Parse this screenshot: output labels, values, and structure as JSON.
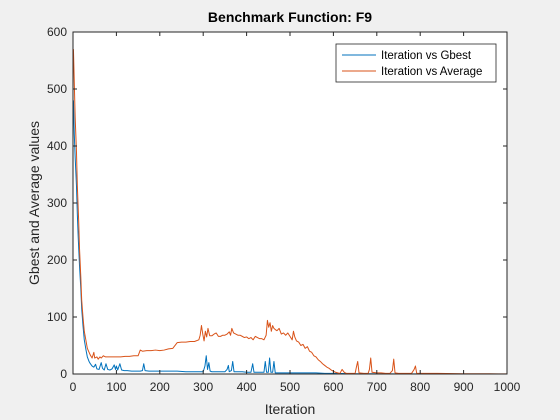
{
  "chart_data": {
    "type": "line",
    "title": "Benchmark Function: F9",
    "xlabel": "Iteration",
    "ylabel": "Gbest and Average values",
    "xlim": [
      0,
      1000
    ],
    "ylim": [
      0,
      600
    ],
    "xticks": [
      0,
      100,
      200,
      300,
      400,
      500,
      600,
      700,
      800,
      900,
      1000
    ],
    "yticks": [
      0,
      100,
      200,
      300,
      400,
      500,
      600
    ],
    "grid": false,
    "legend_placement": "top-right",
    "series": [
      {
        "name": "Iteration vs Gbest",
        "color": "#0072BD",
        "points": [
          [
            1,
            480
          ],
          [
            3,
            420
          ],
          [
            5,
            380
          ],
          [
            8,
            330
          ],
          [
            10,
            280
          ],
          [
            12,
            240
          ],
          [
            15,
            190
          ],
          [
            18,
            150
          ],
          [
            20,
            115
          ],
          [
            23,
            85
          ],
          [
            26,
            60
          ],
          [
            30,
            42
          ],
          [
            33,
            30
          ],
          [
            37,
            22
          ],
          [
            40,
            18
          ],
          [
            44,
            14
          ],
          [
            48,
            12
          ],
          [
            52,
            17
          ],
          [
            55,
            9
          ],
          [
            60,
            8
          ],
          [
            65,
            20
          ],
          [
            68,
            10
          ],
          [
            72,
            7
          ],
          [
            76,
            18
          ],
          [
            80,
            8
          ],
          [
            85,
            7
          ],
          [
            90,
            9
          ],
          [
            95,
            16
          ],
          [
            98,
            8
          ],
          [
            100,
            14
          ],
          [
            103,
            7
          ],
          [
            108,
            18
          ],
          [
            112,
            7
          ],
          [
            118,
            6
          ],
          [
            125,
            6
          ],
          [
            135,
            5
          ],
          [
            145,
            5
          ],
          [
            155,
            5
          ],
          [
            160,
            6
          ],
          [
            163,
            18
          ],
          [
            166,
            6
          ],
          [
            175,
            5
          ],
          [
            190,
            5
          ],
          [
            200,
            5
          ],
          [
            220,
            5
          ],
          [
            240,
            5
          ],
          [
            260,
            4
          ],
          [
            280,
            4
          ],
          [
            295,
            4
          ],
          [
            300,
            4
          ],
          [
            304,
            14
          ],
          [
            307,
            32
          ],
          [
            310,
            8
          ],
          [
            313,
            20
          ],
          [
            316,
            5
          ],
          [
            320,
            4
          ],
          [
            330,
            4
          ],
          [
            340,
            4
          ],
          [
            350,
            4
          ],
          [
            355,
            8
          ],
          [
            358,
            15
          ],
          [
            360,
            4
          ],
          [
            365,
            6
          ],
          [
            368,
            22
          ],
          [
            371,
            4
          ],
          [
            380,
            4
          ],
          [
            390,
            4
          ],
          [
            400,
            3
          ],
          [
            410,
            3
          ],
          [
            414,
            18
          ],
          [
            417,
            3
          ],
          [
            425,
            3
          ],
          [
            435,
            3
          ],
          [
            440,
            3
          ],
          [
            443,
            22
          ],
          [
            446,
            3
          ],
          [
            450,
            3
          ],
          [
            453,
            28
          ],
          [
            456,
            3
          ],
          [
            460,
            3
          ],
          [
            463,
            22
          ],
          [
            466,
            2
          ],
          [
            480,
            2
          ],
          [
            500,
            2
          ],
          [
            520,
            2
          ],
          [
            540,
            2
          ],
          [
            560,
            2
          ],
          [
            580,
            1
          ],
          [
            600,
            1
          ],
          [
            620,
            0.8
          ],
          [
            650,
            0.5
          ],
          [
            700,
            0.4
          ],
          [
            750,
            0.3
          ],
          [
            800,
            0.2
          ],
          [
            850,
            0.2
          ],
          [
            900,
            0.1
          ],
          [
            950,
            0.1
          ],
          [
            1000,
            0.1
          ]
        ]
      },
      {
        "name": "Iteration vs Average",
        "color": "#D95319",
        "points": [
          [
            1,
            570
          ],
          [
            3,
            510
          ],
          [
            5,
            450
          ],
          [
            8,
            390
          ],
          [
            10,
            330
          ],
          [
            13,
            270
          ],
          [
            15,
            220
          ],
          [
            18,
            170
          ],
          [
            20,
            130
          ],
          [
            23,
            100
          ],
          [
            26,
            75
          ],
          [
            30,
            58
          ],
          [
            33,
            45
          ],
          [
            37,
            38
          ],
          [
            40,
            33
          ],
          [
            44,
            28
          ],
          [
            48,
            38
          ],
          [
            50,
            28
          ],
          [
            55,
            30
          ],
          [
            58,
            26
          ],
          [
            62,
            30
          ],
          [
            65,
            28
          ],
          [
            70,
            32
          ],
          [
            75,
            30
          ],
          [
            80,
            30
          ],
          [
            90,
            30
          ],
          [
            100,
            30
          ],
          [
            110,
            30
          ],
          [
            120,
            31
          ],
          [
            130,
            31
          ],
          [
            140,
            32
          ],
          [
            150,
            32
          ],
          [
            155,
            42
          ],
          [
            160,
            40
          ],
          [
            170,
            41
          ],
          [
            180,
            41
          ],
          [
            190,
            42
          ],
          [
            200,
            41
          ],
          [
            210,
            42
          ],
          [
            220,
            44
          ],
          [
            230,
            45
          ],
          [
            240,
            55
          ],
          [
            250,
            56
          ],
          [
            260,
            56
          ],
          [
            270,
            57
          ],
          [
            280,
            57
          ],
          [
            290,
            60
          ],
          [
            293,
            68
          ],
          [
            296,
            85
          ],
          [
            299,
            70
          ],
          [
            302,
            58
          ],
          [
            305,
            75
          ],
          [
            308,
            65
          ],
          [
            311,
            80
          ],
          [
            315,
            67
          ],
          [
            320,
            67
          ],
          [
            325,
            70
          ],
          [
            330,
            72
          ],
          [
            335,
            66
          ],
          [
            340,
            66
          ],
          [
            345,
            68
          ],
          [
            350,
            68
          ],
          [
            355,
            70
          ],
          [
            360,
            74
          ],
          [
            363,
            68
          ],
          [
            366,
            80
          ],
          [
            370,
            72
          ],
          [
            375,
            70
          ],
          [
            380,
            68
          ],
          [
            385,
            68
          ],
          [
            390,
            66
          ],
          [
            395,
            64
          ],
          [
            400,
            65
          ],
          [
            405,
            62
          ],
          [
            410,
            64
          ],
          [
            415,
            60
          ],
          [
            420,
            66
          ],
          [
            425,
            64
          ],
          [
            430,
            62
          ],
          [
            435,
            62
          ],
          [
            440,
            60
          ],
          [
            445,
            68
          ],
          [
            448,
            94
          ],
          [
            451,
            82
          ],
          [
            454,
            90
          ],
          [
            457,
            75
          ],
          [
            460,
            85
          ],
          [
            463,
            80
          ],
          [
            466,
            78
          ],
          [
            470,
            76
          ],
          [
            475,
            80
          ],
          [
            480,
            70
          ],
          [
            485,
            72
          ],
          [
            490,
            68
          ],
          [
            495,
            72
          ],
          [
            500,
            66
          ],
          [
            505,
            60
          ],
          [
            508,
            75
          ],
          [
            511,
            65
          ],
          [
            515,
            58
          ],
          [
            520,
            56
          ],
          [
            525,
            50
          ],
          [
            530,
            52
          ],
          [
            535,
            45
          ],
          [
            540,
            48
          ],
          [
            545,
            40
          ],
          [
            550,
            38
          ],
          [
            555,
            32
          ],
          [
            560,
            30
          ],
          [
            565,
            25
          ],
          [
            570,
            22
          ],
          [
            575,
            18
          ],
          [
            580,
            15
          ],
          [
            585,
            12
          ],
          [
            590,
            10
          ],
          [
            595,
            7
          ],
          [
            600,
            5
          ],
          [
            605,
            3
          ],
          [
            610,
            2
          ],
          [
            615,
            1
          ],
          [
            620,
            8
          ],
          [
            625,
            3
          ],
          [
            630,
            1
          ],
          [
            640,
            1
          ],
          [
            650,
            1
          ],
          [
            653,
            12
          ],
          [
            656,
            22
          ],
          [
            659,
            2
          ],
          [
            670,
            1
          ],
          [
            680,
            1
          ],
          [
            683,
            8
          ],
          [
            686,
            28
          ],
          [
            689,
            3
          ],
          [
            700,
            2
          ],
          [
            710,
            2
          ],
          [
            720,
            1
          ],
          [
            730,
            1
          ],
          [
            736,
            6
          ],
          [
            739,
            26
          ],
          [
            742,
            2
          ],
          [
            750,
            1
          ],
          [
            760,
            1
          ],
          [
            770,
            1
          ],
          [
            780,
            1
          ],
          [
            786,
            8
          ],
          [
            789,
            14
          ],
          [
            792,
            1
          ],
          [
            800,
            1
          ],
          [
            820,
            1
          ],
          [
            840,
            1
          ],
          [
            860,
            0.8
          ],
          [
            880,
            0.6
          ],
          [
            900,
            0.5
          ],
          [
            920,
            0.5
          ],
          [
            940,
            0.4
          ],
          [
            960,
            0.4
          ],
          [
            980,
            0.3
          ],
          [
            1000,
            0.3
          ]
        ]
      }
    ]
  }
}
